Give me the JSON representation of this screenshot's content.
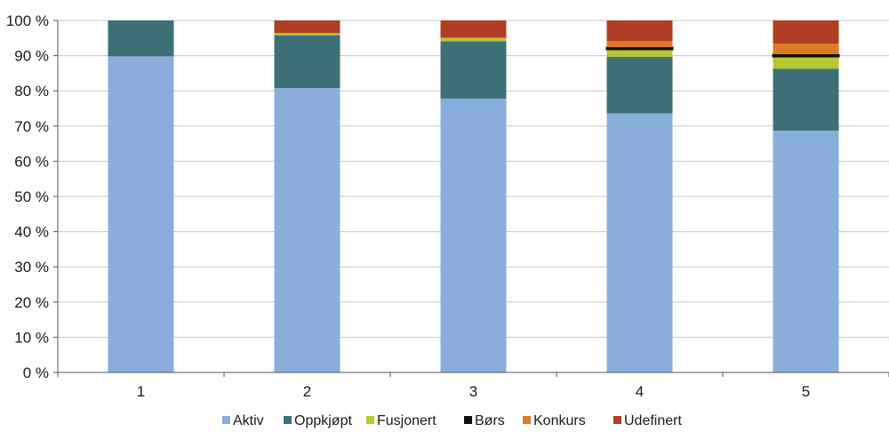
{
  "chart_data": {
    "type": "bar",
    "stacked": true,
    "title": "",
    "xlabel": "",
    "ylabel": "",
    "ylim": [
      0,
      100
    ],
    "yticks": [
      0,
      10,
      20,
      30,
      40,
      50,
      60,
      70,
      80,
      90,
      100
    ],
    "ytick_labels": [
      "0 %",
      "10 %",
      "20 %",
      "30 %",
      "40 %",
      "50 %",
      "60 %",
      "70 %",
      "80 %",
      "90 %",
      "100 %"
    ],
    "categories": [
      "1",
      "2",
      "3",
      "4",
      "5"
    ],
    "series": [
      {
        "name": "Aktiv",
        "color": "#8aaedc",
        "values": [
          89.8,
          80.8,
          77.8,
          73.6,
          68.7
        ]
      },
      {
        "name": "Oppkjøpt",
        "color": "#3d7076",
        "values": [
          10.2,
          15.0,
          16.3,
          16.1,
          17.6
        ]
      },
      {
        "name": "Fusjonert",
        "color": "#b5c832",
        "values": [
          0.0,
          0.6,
          0.8,
          2.0,
          3.3
        ]
      },
      {
        "name": "Børs",
        "color": "#111111",
        "values": [
          0.0,
          0.0,
          0.0,
          0.7,
          0.8
        ]
      },
      {
        "name": "Konkurs",
        "color": "#dd7a24",
        "values": [
          0.0,
          0.0,
          0.3,
          1.7,
          3.0
        ]
      },
      {
        "name": "Udefinert",
        "color": "#b03d24",
        "values": [
          0.0,
          3.6,
          4.8,
          5.9,
          6.6
        ]
      }
    ],
    "legend_position": "bottom",
    "grid": true
  }
}
